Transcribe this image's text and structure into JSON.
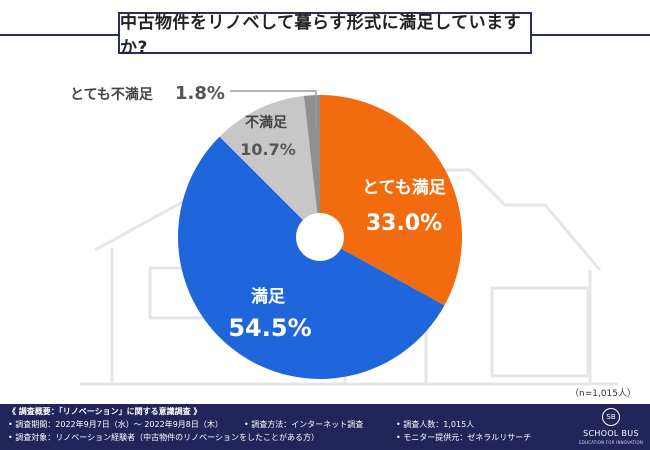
{
  "title": "中古物件をリノベして暮らす形式に満足していますか?",
  "chart_data": {
    "type": "pie",
    "title": "中古物件をリノベして暮らす形式に満足していますか?",
    "series": [
      {
        "name": "とても満足",
        "value": 33.0,
        "label": "33.0%",
        "color": "#f26b0f"
      },
      {
        "name": "満足",
        "value": 54.5,
        "label": "54.5%",
        "color": "#1f66dc"
      },
      {
        "name": "不満足",
        "value": 10.7,
        "label": "10.7%",
        "color": "#c7c7c7"
      },
      {
        "name": "とても不満足",
        "value": 1.8,
        "label": "1.8%",
        "color": "#8f8f8f"
      }
    ],
    "legend": "none"
  },
  "sample_note": "（n=1,015人）",
  "footer": {
    "survey_title": "《 調査概要：「リノベーション」に関する意識調査 》",
    "period": "• 調査期間：2022年9月7日（水）〜 2022年9月8日（木）",
    "target": "• 調査対象：リノベーション経験者（中古物件のリノベーションをしたことがある方）",
    "method": "• 調査方法：インターネット調査",
    "count": "• 調査人数：1,015人",
    "supplier": "• モニター提供元：ゼネラルリサーチ"
  },
  "logo": {
    "mark": "SB",
    "name": "SCHOOL BUS",
    "tagline": "EDUCATION FOR INNOVATION"
  }
}
